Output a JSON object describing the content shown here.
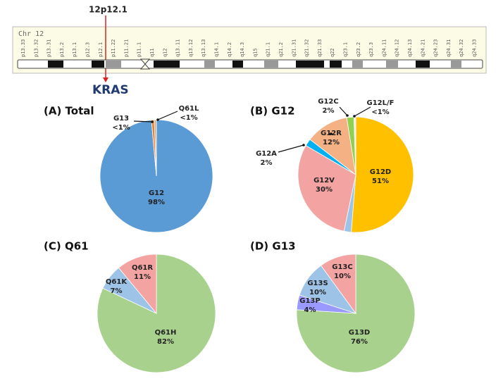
{
  "ideogram": {
    "locus": "12p12.1",
    "gene": "KRAS",
    "title": "Chr 12",
    "bands": [
      "p13.33",
      "p13.32",
      "p13.31",
      "p13.2",
      "p13.1",
      "p12.3",
      "p12.1",
      "p11.22",
      "p11.21",
      "p11.1",
      "q11",
      "q12",
      "q13.11",
      "q13.12",
      "q13.13",
      "q14.1",
      "q14.2",
      "q14.3",
      "q15",
      "q21.1",
      "q21.2",
      "q21.31",
      "q21.32",
      "q21.33",
      "q22",
      "q23.1",
      "q23.2",
      "q23.3",
      "q24.11",
      "q24.12",
      "q24.13",
      "q24.21",
      "q24.23",
      "q24.31",
      "q24.32",
      "q24.33"
    ]
  },
  "chart_data": [
    {
      "type": "pie",
      "title": "(A) Total",
      "categories": [
        "G12",
        "G13",
        "Q61L"
      ],
      "values": [
        98,
        0.8,
        0.6
      ],
      "value_labels": [
        "98%",
        "<1%",
        "<1%"
      ],
      "colors": [
        "#5b9bd5",
        "#ed7d31",
        "#c9b08a"
      ]
    },
    {
      "type": "pie",
      "title": "(B) G12",
      "categories": [
        "G12D",
        null,
        "G12V",
        "G12A",
        "G12R",
        "G12C",
        "G12L/F"
      ],
      "values": [
        51,
        2,
        30,
        2,
        12,
        2,
        0.5
      ],
      "value_labels": [
        "51%",
        null,
        "30%",
        "2%",
        "12%",
        "2%",
        "<1%"
      ],
      "colors": [
        "#ffc000",
        "#9dc3e6",
        "#f4a3a3",
        "#00b0f0",
        "#f4b183",
        "#92d050",
        "#ededed"
      ]
    },
    {
      "type": "pie",
      "title": "(C) Q61",
      "categories": [
        "Q61H",
        "Q61K",
        "Q61R"
      ],
      "values": [
        82,
        7,
        11
      ],
      "value_labels": [
        "82%",
        "7%",
        "11%"
      ],
      "colors": [
        "#a9d18e",
        "#9dc3e6",
        "#f4a3a3"
      ]
    },
    {
      "type": "pie",
      "title": "(D) G13",
      "categories": [
        "G13D",
        "G13P",
        "G13S",
        "G13C"
      ],
      "values": [
        76,
        4,
        10,
        10
      ],
      "value_labels": [
        "76%",
        "4%",
        "10%",
        "10%"
      ],
      "colors": [
        "#a9d18e",
        "#9999ff",
        "#9dc3e6",
        "#f4a3a3"
      ]
    }
  ]
}
